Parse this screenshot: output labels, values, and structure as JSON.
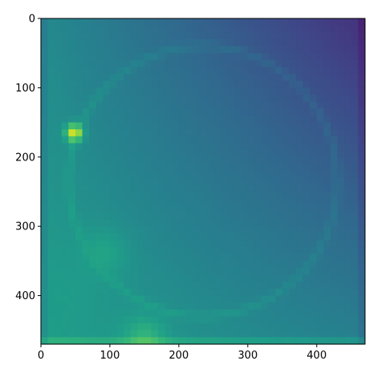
{
  "chart_data": {
    "type": "heatmap",
    "title": "",
    "xlabel": "",
    "ylabel": "",
    "colormap": "viridis",
    "xlim": [
      0,
      470
    ],
    "ylim": [
      470,
      0
    ],
    "grid": false,
    "legend": "none",
    "x_ticks": [
      {
        "value": 0,
        "label": "0"
      },
      {
        "value": 100,
        "label": "100"
      },
      {
        "value": 200,
        "label": "200"
      },
      {
        "value": 300,
        "label": "300"
      },
      {
        "value": 400,
        "label": "400"
      }
    ],
    "y_ticks": [
      {
        "value": 0,
        "label": "0"
      },
      {
        "value": 100,
        "label": "100"
      },
      {
        "value": 200,
        "label": "200"
      },
      {
        "value": 300,
        "label": "300"
      },
      {
        "value": 400,
        "label": "400"
      }
    ],
    "value_range": [
      0,
      1
    ],
    "field": {
      "base_value": 0.36,
      "left_bottom_gradient": 0.2,
      "right_top_darkening": 0.22,
      "circle_center": [
        235,
        235
      ],
      "circle_radius": 195,
      "circle_ring_value": 0.05,
      "features": [
        {
          "x": 48,
          "y": 165,
          "radius": 12,
          "value": 0.95
        },
        {
          "x": 90,
          "y": 340,
          "radius": 35,
          "value": 0.58
        },
        {
          "x": 150,
          "y": 462,
          "radius": 30,
          "value": 0.65
        },
        {
          "x": 230,
          "y": 230,
          "radius": 15,
          "value": 0.3
        },
        {
          "x": 360,
          "y": 380,
          "radius": 35,
          "value": 0.28
        },
        {
          "x": 30,
          "y": 400,
          "radius": 40,
          "value": 0.55
        }
      ]
    }
  },
  "colors": {
    "viridis": [
      "#440154",
      "#482878",
      "#3e4989",
      "#31688e",
      "#26828e",
      "#1f9e89",
      "#35b779",
      "#6ece58",
      "#b5de2b",
      "#fde725"
    ]
  }
}
